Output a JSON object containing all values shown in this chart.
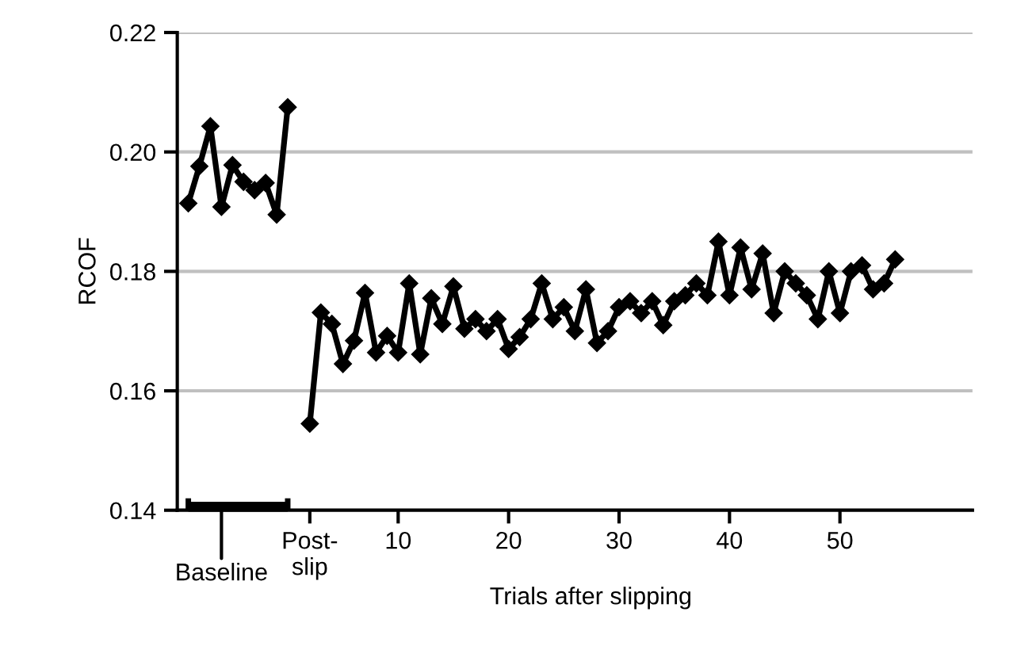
{
  "chart_data": {
    "type": "line",
    "ylabel": "RCOF",
    "xlabel": "Trials after slipping",
    "series": [
      {
        "color": "#000000",
        "x": [
          -9,
          -8,
          -7,
          -6,
          -5,
          -4,
          -3,
          -2,
          -1,
          0
        ],
        "values": [
          0.1914,
          0.1976,
          0.2043,
          0.1908,
          0.1978,
          0.195,
          0.1936,
          0.1948,
          0.1895,
          0.2075
        ]
      },
      {
        "color": "#000000",
        "x": [
          2,
          3,
          4,
          5,
          6,
          7,
          8,
          9,
          10,
          11,
          12,
          13,
          14,
          15,
          16,
          17,
          18,
          19,
          20,
          21,
          22,
          23,
          24,
          25,
          26,
          27,
          28,
          29,
          30,
          31,
          32,
          33,
          34,
          35,
          36,
          37,
          38,
          39,
          40,
          41,
          42,
          43,
          44,
          45,
          46,
          47,
          48,
          49,
          50,
          51,
          52,
          53,
          54,
          55
        ],
        "values": [
          0.1545,
          0.1731,
          0.1712,
          0.1645,
          0.1684,
          0.1764,
          0.1664,
          0.1692,
          0.1664,
          0.178,
          0.1661,
          0.1755,
          0.1712,
          0.1775,
          0.1704,
          0.172,
          0.17,
          0.172,
          0.167,
          0.169,
          0.172,
          0.178,
          0.172,
          0.174,
          0.17,
          0.177,
          0.168,
          0.17,
          0.174,
          0.175,
          0.173,
          0.175,
          0.171,
          0.175,
          0.176,
          0.178,
          0.176,
          0.185,
          0.176,
          0.184,
          0.177,
          0.183,
          0.173,
          0.18,
          0.178,
          0.176,
          0.172,
          0.18,
          0.173,
          0.18,
          0.181,
          0.177,
          0.178,
          0.182
        ]
      }
    ],
    "marker": "diamond",
    "line_style": "solid",
    "xlim": [
      -10,
      62
    ],
    "xticks": [
      {
        "value": 2,
        "label": "Post-\nslip"
      },
      10,
      20,
      30,
      40,
      50
    ],
    "ylim": [
      0.14,
      0.22
    ],
    "yticks": [
      {
        "value": 0.14,
        "label": "0.14"
      },
      {
        "value": 0.16,
        "label": "0.16"
      },
      {
        "value": 0.18,
        "label": "0.18"
      },
      {
        "value": 0.2,
        "label": "0.20"
      },
      {
        "value": 0.22,
        "label": "0.22"
      }
    ],
    "grid": "y",
    "legend": false,
    "annotations": [
      "Baseline"
    ]
  }
}
